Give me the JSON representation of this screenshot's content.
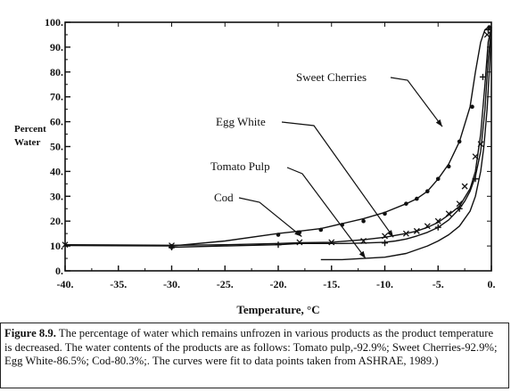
{
  "chart_data": {
    "type": "line",
    "xlabel": "Temperature, °C",
    "ylabel_lines": [
      "Percent",
      "Water"
    ],
    "xlim": [
      -40,
      0
    ],
    "ylim": [
      0,
      100
    ],
    "x_ticks": [
      -40,
      -35,
      -30,
      -25,
      -20,
      -15,
      -10,
      -5,
      0
    ],
    "x_tick_labels": [
      "-40.",
      "-35.",
      "-30.",
      "-25.",
      "-20.",
      "-15.",
      "-10.",
      "-5.",
      "0."
    ],
    "y_ticks": [
      0,
      10,
      20,
      30,
      40,
      50,
      60,
      70,
      80,
      90,
      100
    ],
    "y_tick_labels": [
      "0.",
      "10.",
      "20.",
      "30.",
      "40.",
      "50.",
      "60.",
      "70.",
      "80.",
      "90.",
      "100."
    ],
    "series": [
      {
        "name": "Sweet Cherries",
        "marker": "dot",
        "x": [
          -40,
          -30,
          -25,
          -20,
          -18,
          -16,
          -14,
          -12,
          -10,
          -8,
          -7,
          -6,
          -5,
          -4,
          -3,
          -2,
          -1.5,
          -1,
          -0.6,
          -0.3,
          0
        ],
        "y": [
          10.2,
          10,
          12,
          15,
          16,
          17,
          19,
          21,
          23.5,
          27,
          29,
          32,
          37,
          43,
          52,
          66,
          80,
          92,
          97,
          98,
          98
        ],
        "marker_x": [
          -30,
          -20,
          -18,
          -16,
          -14,
          -12,
          -10,
          -8,
          -7,
          -6,
          -5,
          -4,
          -3,
          -1.8,
          -0.2
        ],
        "marker_y": [
          9.5,
          14.5,
          15.5,
          16.5,
          18.5,
          20,
          23,
          27,
          29,
          32,
          37,
          42,
          52,
          66,
          98
        ]
      },
      {
        "name": "Egg White",
        "marker": "x",
        "x": [
          -40,
          -30,
          -25,
          -20,
          -18,
          -15,
          -12,
          -10,
          -8,
          -7,
          -6,
          -5,
          -4,
          -3,
          -2,
          -1.5,
          -1,
          -0.6,
          -0.3,
          0
        ],
        "y": [
          10.5,
          10.3,
          10.5,
          11,
          11.3,
          11.5,
          12.5,
          13.5,
          15,
          16,
          17.5,
          19.5,
          22.5,
          26,
          33,
          40,
          55,
          75,
          92,
          98
        ],
        "marker_x": [
          -40,
          -30,
          -18,
          -15,
          -12,
          -10,
          -8,
          -7,
          -6,
          -5,
          -4,
          -3,
          -2.5,
          -1.5,
          -1,
          -0.4
        ],
        "marker_y": [
          10.5,
          10.2,
          11.5,
          11.5,
          12,
          14,
          15,
          16,
          18,
          20,
          23,
          27,
          34,
          46,
          51,
          95
        ]
      },
      {
        "name": "Tomato Pulp",
        "marker": "plus",
        "x": [
          -30,
          -25,
          -20,
          -18,
          -16,
          -14,
          -12,
          -10,
          -9,
          -8,
          -7,
          -6,
          -5,
          -4,
          -3,
          -2.5,
          -2,
          -1.5,
          -1,
          -0.6,
          -0.3,
          0
        ],
        "y": [
          9.5,
          10,
          10.5,
          11,
          11,
          11,
          11.2,
          11.5,
          12,
          12.8,
          14,
          15.5,
          17.5,
          20.5,
          25,
          28,
          32,
          38,
          48,
          65,
          85,
          98
        ],
        "marker_x": [
          -30,
          -20,
          -10,
          -5,
          -3,
          -1.5,
          -0.8,
          -0.3
        ],
        "marker_y": [
          9.5,
          10.5,
          11.2,
          17.5,
          25,
          37,
          78,
          97
        ]
      },
      {
        "name": "Cod",
        "marker": "none",
        "x": [
          -16,
          -14,
          -12,
          -10,
          -8,
          -6,
          -5,
          -4,
          -3,
          -2,
          -1.5,
          -1,
          -0.7,
          -0.4,
          -0.2,
          0
        ],
        "y": [
          4.5,
          4.5,
          5,
          5.5,
          7,
          10,
          12,
          14.5,
          18,
          24,
          30,
          40,
          50,
          65,
          80,
          97
        ]
      }
    ],
    "annotations": [
      {
        "text": "Sweet Cherries",
        "target": [
          -4.6,
          58
        ]
      },
      {
        "text": "Egg White",
        "target": [
          -9.2,
          13.5
        ]
      },
      {
        "text": "Tomato Pulp",
        "target": [
          -11.8,
          5
        ]
      },
      {
        "text": "Cod",
        "target": [
          -17.8,
          13.8
        ]
      }
    ]
  },
  "caption": {
    "figure_label": "Figure 8.9.",
    "text": " The percentage of water which remains unfrozen in various products as the product temperature is decreased. The water contents of the products are as follows: Tomato pulp,-92.9%; Sweet Cherries-92.9%; Egg White-86.5%; Cod-80.3%;. The curves were fit to data points taken from ASHRAE, 1989.)"
  }
}
